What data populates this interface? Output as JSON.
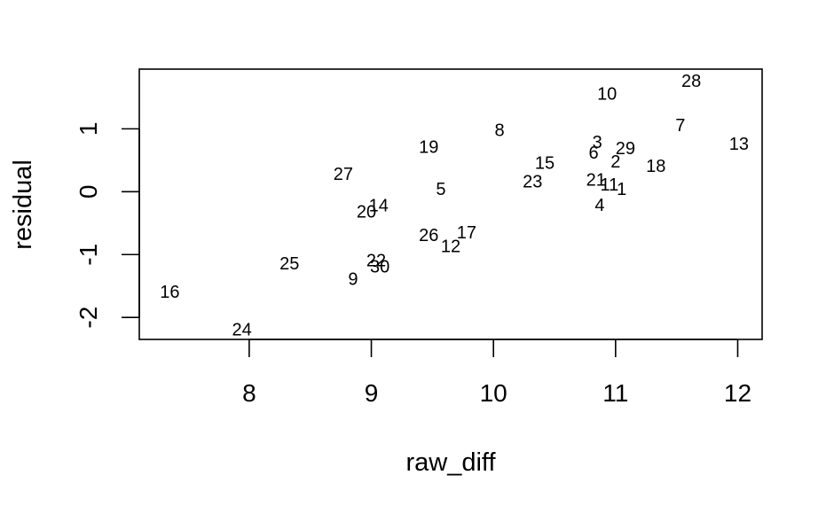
{
  "chart_data": {
    "type": "scatter",
    "marker": "text-labels",
    "title": "",
    "xlabel": "raw_diff",
    "ylabel": "residual",
    "xlim": [
      7.1,
      12.2
    ],
    "ylim": [
      -2.35,
      1.95
    ],
    "x_ticks": [
      8,
      9,
      10,
      11,
      12
    ],
    "y_ticks": [
      -2,
      -1,
      0,
      1
    ],
    "grid": false,
    "points": [
      {
        "label": "1",
        "x": 11.05,
        "y": 0.03
      },
      {
        "label": "2",
        "x": 11.0,
        "y": 0.47
      },
      {
        "label": "3",
        "x": 10.85,
        "y": 0.78
      },
      {
        "label": "4",
        "x": 10.87,
        "y": -0.22
      },
      {
        "label": "5",
        "x": 9.57,
        "y": 0.03
      },
      {
        "label": "6",
        "x": 10.82,
        "y": 0.61
      },
      {
        "label": "7",
        "x": 11.53,
        "y": 1.05
      },
      {
        "label": "8",
        "x": 10.05,
        "y": 0.97
      },
      {
        "label": "9",
        "x": 8.85,
        "y": -1.4
      },
      {
        "label": "10",
        "x": 10.93,
        "y": 1.55
      },
      {
        "label": "11",
        "x": 10.95,
        "y": 0.1
      },
      {
        "label": "12",
        "x": 9.65,
        "y": -0.88
      },
      {
        "label": "13",
        "x": 12.01,
        "y": 0.75
      },
      {
        "label": "14",
        "x": 9.06,
        "y": -0.23
      },
      {
        "label": "15",
        "x": 10.42,
        "y": 0.45
      },
      {
        "label": "16",
        "x": 7.35,
        "y": -1.6
      },
      {
        "label": "17",
        "x": 9.78,
        "y": -0.66
      },
      {
        "label": "18",
        "x": 11.33,
        "y": 0.4
      },
      {
        "label": "19",
        "x": 9.47,
        "y": 0.7
      },
      {
        "label": "20",
        "x": 8.96,
        "y": -0.33
      },
      {
        "label": "21",
        "x": 10.84,
        "y": 0.18
      },
      {
        "label": "22",
        "x": 9.04,
        "y": -1.1
      },
      {
        "label": "23",
        "x": 10.32,
        "y": 0.15
      },
      {
        "label": "24",
        "x": 7.94,
        "y": -2.2
      },
      {
        "label": "25",
        "x": 8.33,
        "y": -1.15
      },
      {
        "label": "26",
        "x": 9.47,
        "y": -0.7
      },
      {
        "label": "27",
        "x": 8.77,
        "y": 0.27
      },
      {
        "label": "28",
        "x": 11.62,
        "y": 1.75
      },
      {
        "label": "29",
        "x": 11.08,
        "y": 0.68
      },
      {
        "label": "30",
        "x": 9.07,
        "y": -1.2
      }
    ]
  }
}
